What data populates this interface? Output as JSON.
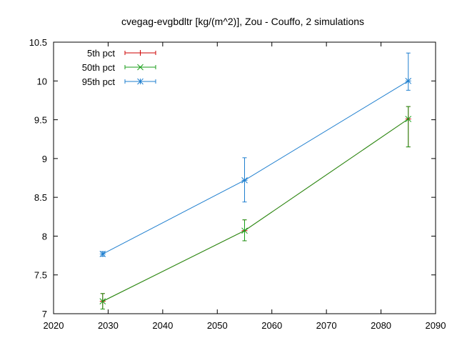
{
  "chart_data": {
    "type": "line",
    "title": "cvegag-evgbdltr [kg/(m^2)], Zou - Couffo, 2 simulations",
    "xlim": [
      2020,
      2090
    ],
    "ylim": [
      7,
      10.5
    ],
    "x_ticks": [
      2020,
      2030,
      2040,
      2050,
      2060,
      2070,
      2080,
      2090
    ],
    "y_ticks": [
      7,
      7.5,
      8,
      8.5,
      9,
      9.5,
      10,
      10.5
    ],
    "x_tick_labels": [
      "2020",
      "2030",
      "2040",
      "2050",
      "2060",
      "2070",
      "2080",
      "2090"
    ],
    "y_tick_labels": [
      "7",
      "7.5",
      "8",
      "8.5",
      "9",
      "9.5",
      "10",
      "10.5"
    ],
    "grid": false,
    "legend_position": "top-left",
    "x": [
      2029,
      2055,
      2085
    ],
    "series": [
      {
        "name": "5th pct",
        "color": "#cc0000",
        "marker": "plus",
        "values": [
          7.16,
          8.07,
          9.51
        ],
        "err_low": [
          7.06,
          7.94,
          9.15
        ],
        "err_high": [
          7.26,
          8.21,
          9.67
        ]
      },
      {
        "name": "50th pct",
        "color": "#1a9e1a",
        "marker": "x",
        "values": [
          7.16,
          8.07,
          9.51
        ],
        "err_low": [
          7.06,
          7.94,
          9.15
        ],
        "err_high": [
          7.26,
          8.21,
          9.67
        ]
      },
      {
        "name": "95th pct",
        "color": "#1f7fcf",
        "marker": "star",
        "values": [
          7.77,
          8.72,
          10.0
        ],
        "err_low": [
          7.74,
          8.44,
          9.88
        ],
        "err_high": [
          7.8,
          9.01,
          10.36
        ]
      }
    ]
  }
}
